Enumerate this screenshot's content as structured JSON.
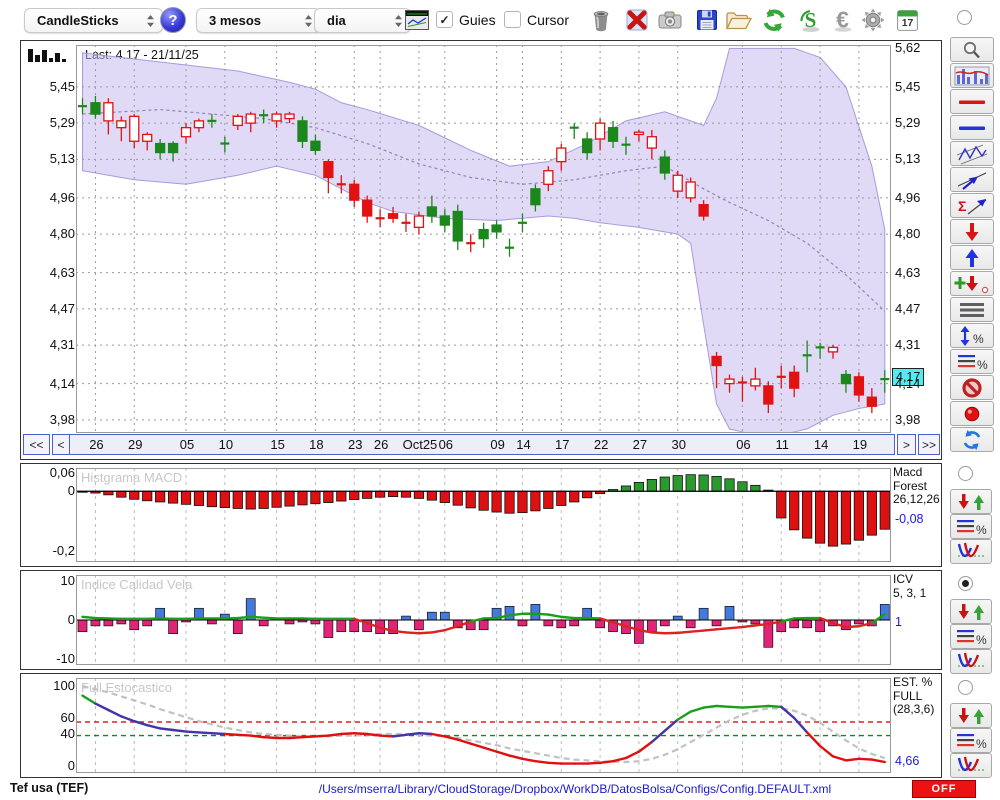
{
  "toolbar": {
    "chart_type": "CandleSticks",
    "period": "3 mesos",
    "interval": "dia",
    "help": "?",
    "guies": "Guies",
    "guies_checked": true,
    "cursor": "Cursor",
    "cursor_checked": false,
    "calendar_day": "17",
    "icons": [
      "trash",
      "delete-x",
      "camera",
      "save-floppy",
      "open-folder",
      "refresh-green",
      "sync-s",
      "euro",
      "settings-gear",
      "calendar-17"
    ]
  },
  "chart": {
    "last_label": "Last: 4.17 - 21/11/25",
    "left_axis": [
      "5,45",
      "5,29",
      "5,13",
      "4,96",
      "4,80",
      "4,63",
      "4,47",
      "4,31",
      "4,14",
      "3,98"
    ],
    "right_axis": [
      "5,62",
      "5,45",
      "5,29",
      "5,13",
      "4,96",
      "4,80",
      "4,63",
      "4,47",
      "4,31",
      "4,14",
      "3,98"
    ],
    "price_tag": "4,17",
    "x_labels": [
      "26",
      "29",
      "05",
      "10",
      "15",
      "18",
      "23",
      "26",
      "Oct25",
      "06",
      "09",
      "14",
      "17",
      "22",
      "27",
      "30",
      "06",
      "11",
      "14",
      "19"
    ],
    "nav": {
      "first": "<<",
      "prev": "<",
      "next": ">",
      "last": ">>"
    }
  },
  "panels": {
    "macd": {
      "title": "Histgrama MACD",
      "axis": [
        "0,06",
        "0",
        "-0,2"
      ],
      "right_lines": [
        "Macd",
        "Forest",
        "26,12,26"
      ],
      "value": "-0,08"
    },
    "icv": {
      "title": "Indice Calidad Vela",
      "axis": [
        "10",
        "0",
        "-10"
      ],
      "right_lines": [
        "ICV",
        "5, 3, 1"
      ],
      "value": "1"
    },
    "stoch": {
      "title": "Full Estocastico",
      "axis": [
        "100",
        "60",
        "40",
        "0"
      ],
      "right_lines": [
        "EST. %",
        "FULL",
        "(28,3,6)"
      ],
      "value": "4,66"
    }
  },
  "statusbar": {
    "symbol": "Tef usa (TEF)",
    "path": "/Users/mserra/Library/CloudStorage/Dropbox/WorkDB/DatosBolsa/Configs/Config.DEFAULT.xml",
    "off": "OFF"
  },
  "sidebar_tools": [
    "zoom-magnifier",
    "indicator-chart",
    "red-line",
    "blue-line",
    "zigzag-channel",
    "trend-arrow",
    "sigma-trend",
    "down-arrow-red",
    "up-arrow-blue",
    "add-signal",
    "list-lines",
    "vertical-percent",
    "lines-percent",
    "forbidden",
    "record-dot",
    "refresh-blue"
  ],
  "panel_tools": [
    "signal-arrows",
    "lines-percent",
    "curve-v"
  ],
  "colors": {
    "band": "#c6bcf0",
    "band_edge": "#a79bdc",
    "mid_line": "#8d87b5",
    "grid": "#9b9b9b",
    "green": "#1c871c",
    "red": "#e01212",
    "macd_green": "#2a9a2e",
    "macd_red": "#dd1111",
    "icv_blue": "#447add",
    "icv_pink": "#e22478",
    "icv_line_green": "#18a018",
    "icv_line_red": "#dd2222",
    "stoch_green": "#18a018",
    "stoch_purple": "#4633a8",
    "stoch_red": "#e01010",
    "signal_gray": "#c2c2c2",
    "overbought_red": "#dd2222",
    "oversold_green": "#118811",
    "tag_cyan": "#55e9f2",
    "nav_blue": "#4a5fd0",
    "link_blue": "#1a1acc",
    "off_red": "#ee1111"
  },
  "chart_data": [
    {
      "type": "candlestick",
      "name": "price",
      "ylim": [
        3.92,
        5.64
      ],
      "x_tick_indices": [
        1,
        4,
        8,
        11,
        15,
        18,
        21,
        23,
        26,
        28,
        32,
        34,
        37,
        40,
        43,
        46,
        51,
        54,
        57,
        60
      ],
      "grid_prices": [
        5.45,
        5.29,
        5.13,
        4.96,
        4.8,
        4.63,
        4.47,
        4.31,
        4.14,
        3.98
      ],
      "last_price": 4.17,
      "candles": [
        [
          5.36,
          5.4,
          5.33,
          5.37,
          "gc"
        ],
        [
          5.33,
          5.41,
          5.31,
          5.38,
          "g"
        ],
        [
          5.38,
          5.4,
          5.24,
          5.3,
          "G"
        ],
        [
          5.27,
          5.32,
          5.21,
          5.3,
          "G"
        ],
        [
          5.32,
          5.33,
          5.18,
          5.21,
          "G"
        ],
        [
          5.21,
          5.25,
          5.17,
          5.24,
          "G"
        ],
        [
          5.2,
          5.22,
          5.13,
          5.16,
          "g"
        ],
        [
          5.16,
          5.21,
          5.12,
          5.2,
          "g"
        ],
        [
          5.23,
          5.29,
          5.2,
          5.27,
          "G"
        ],
        [
          5.27,
          5.31,
          5.25,
          5.3,
          "G"
        ],
        [
          5.3,
          5.33,
          5.27,
          5.3,
          "gc"
        ],
        [
          5.2,
          5.23,
          5.16,
          5.2,
          "gc"
        ],
        [
          5.28,
          5.33,
          5.26,
          5.32,
          "G"
        ],
        [
          5.29,
          5.34,
          5.25,
          5.33,
          "G"
        ],
        [
          5.31,
          5.35,
          5.29,
          5.34,
          "gc"
        ],
        [
          5.3,
          5.34,
          5.27,
          5.33,
          "G"
        ],
        [
          5.31,
          5.34,
          5.29,
          5.33,
          "G"
        ],
        [
          5.3,
          5.32,
          5.18,
          5.21,
          "g"
        ],
        [
          5.21,
          5.24,
          5.15,
          5.17,
          "g"
        ],
        [
          5.12,
          5.13,
          4.98,
          5.05,
          "r"
        ],
        [
          5.02,
          5.06,
          4.98,
          5.02,
          "rc"
        ],
        [
          5.02,
          5.04,
          4.92,
          4.95,
          "r"
        ],
        [
          4.95,
          4.97,
          4.85,
          4.88,
          "r"
        ],
        [
          4.87,
          4.91,
          4.83,
          4.87,
          "rc"
        ],
        [
          4.89,
          4.92,
          4.85,
          4.87,
          "r"
        ],
        [
          4.85,
          4.89,
          4.81,
          4.85,
          "rc"
        ],
        [
          4.83,
          4.9,
          4.8,
          4.88,
          "G"
        ],
        [
          4.88,
          4.97,
          4.85,
          4.92,
          "g"
        ],
        [
          4.88,
          4.91,
          4.81,
          4.84,
          "g"
        ],
        [
          4.9,
          4.93,
          4.73,
          4.77,
          "g"
        ],
        [
          4.76,
          4.8,
          4.72,
          4.76,
          "rc"
        ],
        [
          4.78,
          4.85,
          4.74,
          4.82,
          "g"
        ],
        [
          4.81,
          4.86,
          4.78,
          4.84,
          "g"
        ],
        [
          4.74,
          4.78,
          4.7,
          4.74,
          "gc"
        ],
        [
          4.85,
          4.89,
          4.81,
          4.85,
          "gc"
        ],
        [
          4.93,
          5.02,
          4.9,
          5.0,
          "g"
        ],
        [
          5.02,
          5.1,
          4.99,
          5.08,
          "G"
        ],
        [
          5.12,
          5.2,
          5.08,
          5.18,
          "G"
        ],
        [
          5.27,
          5.29,
          5.22,
          5.27,
          "gc"
        ],
        [
          5.22,
          5.25,
          5.13,
          5.16,
          "g"
        ],
        [
          5.22,
          5.31,
          5.17,
          5.29,
          "G"
        ],
        [
          5.27,
          5.3,
          5.18,
          5.21,
          "g"
        ],
        [
          5.2,
          5.23,
          5.15,
          5.19,
          "gc"
        ],
        [
          5.24,
          5.26,
          5.21,
          5.25,
          "G"
        ],
        [
          5.18,
          5.26,
          5.13,
          5.23,
          "G"
        ],
        [
          5.14,
          5.17,
          5.04,
          5.07,
          "g"
        ],
        [
          4.99,
          5.08,
          4.96,
          5.06,
          "G"
        ],
        [
          5.03,
          5.05,
          4.94,
          4.96,
          "R"
        ],
        [
          4.93,
          4.95,
          4.86,
          4.88,
          "r"
        ],
        [
          4.26,
          4.28,
          4.12,
          4.22,
          "r"
        ],
        [
          4.14,
          4.18,
          4.1,
          4.16,
          "R"
        ],
        [
          4.15,
          4.17,
          4.06,
          4.14,
          "rc"
        ],
        [
          4.16,
          4.21,
          4.11,
          4.13,
          "R"
        ],
        [
          4.13,
          4.15,
          4.01,
          4.05,
          "r"
        ],
        [
          4.17,
          4.22,
          4.12,
          4.17,
          "rc"
        ],
        [
          4.19,
          4.22,
          4.08,
          4.12,
          "r"
        ],
        [
          4.26,
          4.33,
          4.19,
          4.27,
          "gc"
        ],
        [
          4.3,
          4.32,
          4.25,
          4.3,
          "gc"
        ],
        [
          4.28,
          4.31,
          4.25,
          4.3,
          "G"
        ],
        [
          4.14,
          4.2,
          4.1,
          4.18,
          "g"
        ],
        [
          4.17,
          4.19,
          4.06,
          4.09,
          "r"
        ],
        [
          4.08,
          4.12,
          4.01,
          4.04,
          "r"
        ],
        [
          4.15,
          4.2,
          4.1,
          4.17,
          "gc"
        ]
      ],
      "band": {
        "upper": [
          [
            0,
            5.6
          ],
          [
            6,
            5.56
          ],
          [
            12,
            5.52
          ],
          [
            16,
            5.47
          ],
          [
            18,
            5.44
          ],
          [
            20,
            5.38
          ],
          [
            22,
            5.35
          ],
          [
            26,
            5.28
          ],
          [
            30,
            5.17
          ],
          [
            33,
            5.1
          ],
          [
            36,
            5.12
          ],
          [
            39,
            5.2
          ],
          [
            42,
            5.3
          ],
          [
            45,
            5.34
          ],
          [
            47,
            5.3
          ],
          [
            48,
            5.28
          ],
          [
            49,
            5.4
          ],
          [
            50,
            5.62
          ],
          [
            55,
            5.62
          ],
          [
            57,
            5.58
          ],
          [
            59,
            5.45
          ],
          [
            61,
            5.1
          ],
          [
            62,
            4.82
          ]
        ],
        "lower": [
          [
            0,
            5.08
          ],
          [
            4,
            5.04
          ],
          [
            8,
            5.02
          ],
          [
            12,
            5.06
          ],
          [
            15,
            5.1
          ],
          [
            18,
            5.06
          ],
          [
            20,
            5.0
          ],
          [
            22,
            4.94
          ],
          [
            24,
            4.9
          ],
          [
            28,
            4.87
          ],
          [
            32,
            4.86
          ],
          [
            36,
            4.88
          ],
          [
            38,
            4.87
          ],
          [
            40,
            4.85
          ],
          [
            43,
            4.83
          ],
          [
            46,
            4.8
          ],
          [
            47,
            4.76
          ],
          [
            48,
            4.4
          ],
          [
            49,
            4.05
          ],
          [
            50,
            3.94
          ],
          [
            53,
            3.9
          ],
          [
            56,
            3.94
          ],
          [
            58,
            4.0
          ],
          [
            60,
            4.03
          ],
          [
            62,
            4.05
          ]
        ],
        "mid": [
          [
            0,
            5.33
          ],
          [
            6,
            5.35
          ],
          [
            10,
            5.33
          ],
          [
            14,
            5.31
          ],
          [
            18,
            5.27
          ],
          [
            22,
            5.2
          ],
          [
            26,
            5.11
          ],
          [
            30,
            5.05
          ],
          [
            34,
            5.02
          ],
          [
            38,
            5.04
          ],
          [
            42,
            5.08
          ],
          [
            45,
            5.1
          ],
          [
            48,
            5.0
          ],
          [
            50,
            4.94
          ],
          [
            53,
            4.86
          ],
          [
            56,
            4.76
          ],
          [
            59,
            4.62
          ],
          [
            62,
            4.46
          ]
        ]
      }
    },
    {
      "type": "bar",
      "name": "macd_histogram",
      "ylim": [
        -0.225,
        0.065
      ],
      "values": [
        -0.002,
        -0.006,
        -0.012,
        -0.02,
        -0.027,
        -0.032,
        -0.036,
        -0.04,
        -0.044,
        -0.048,
        -0.052,
        -0.055,
        -0.058,
        -0.06,
        -0.058,
        -0.054,
        -0.05,
        -0.046,
        -0.042,
        -0.038,
        -0.033,
        -0.028,
        -0.024,
        -0.02,
        -0.018,
        -0.02,
        -0.024,
        -0.03,
        -0.038,
        -0.047,
        -0.056,
        -0.064,
        -0.07,
        -0.074,
        -0.072,
        -0.066,
        -0.058,
        -0.048,
        -0.036,
        -0.022,
        -0.008,
        0.006,
        0.018,
        0.03,
        0.04,
        0.048,
        0.053,
        0.056,
        0.055,
        0.05,
        0.042,
        0.032,
        0.02,
        0.004,
        -0.09,
        -0.13,
        -0.158,
        -0.175,
        -0.185,
        -0.178,
        -0.165,
        -0.148,
        -0.128
      ]
    },
    {
      "type": "bar+line",
      "name": "icv",
      "ylim": [
        -10,
        10
      ],
      "bars": [
        -3,
        -1.5,
        -1.5,
        -1,
        -2.5,
        -1.5,
        3,
        -3.5,
        -0.5,
        3,
        -1,
        1.5,
        -3.5,
        5.5,
        -1.5,
        0.5,
        -1,
        -0.5,
        -1,
        -4.5,
        -3,
        -3,
        -3,
        -3.5,
        -3.5,
        1,
        -2.5,
        2,
        2,
        -2,
        -2.5,
        -2.5,
        3,
        3.5,
        -1.5,
        4,
        -1.5,
        -2,
        -1.5,
        3,
        -2,
        -3,
        -3.5,
        -6,
        -3,
        -1.5,
        1,
        -2,
        3,
        -1.5,
        3.5,
        -0.5,
        -1,
        -7,
        -3,
        -2,
        -2,
        -3,
        -1.5,
        -2.5,
        -1,
        -1.5,
        4
      ],
      "line": [
        0.8,
        0.5,
        0.4,
        0.3,
        0.3,
        0.3,
        0.4,
        0.3,
        0.3,
        0.4,
        0.4,
        0.4,
        0.5,
        0.8,
        0.6,
        0.4,
        0.4,
        0.4,
        0.3,
        0.3,
        0.3,
        0.3,
        -0.8,
        -2.0,
        -2.8,
        -3.2,
        -3.4,
        -3.2,
        -2.6,
        -1.6,
        -0.4,
        0.4,
        0.5,
        1.2,
        1.6,
        1.6,
        1.4,
        0.8,
        0.5,
        0.5,
        0.4,
        -0.6,
        -1.6,
        -2.6,
        -3.2,
        -3.4,
        -3.3,
        -3.0,
        -2.7,
        -2.4,
        -2.1,
        -1.8,
        -1.4,
        -1.0,
        -0.4,
        0.4,
        0.5,
        0.5,
        -0.8,
        -1.8,
        -1.6,
        -0.8,
        1.5
      ]
    },
    {
      "type": "line",
      "name": "stochastic",
      "ylim": [
        0,
        100
      ],
      "overbought": 55,
      "oversold": 38,
      "main": [
        88,
        78,
        70,
        62,
        56,
        51,
        47,
        45,
        43,
        42,
        41,
        40,
        39,
        38,
        36,
        35,
        35,
        36,
        37,
        38,
        40,
        41,
        40,
        38,
        37,
        39,
        41,
        40,
        37,
        33,
        28,
        23,
        18,
        13,
        9,
        6,
        4,
        3,
        3,
        3,
        4,
        6,
        10,
        18,
        30,
        44,
        58,
        68,
        73,
        75,
        74,
        73,
        74,
        75,
        74,
        60,
        42,
        25,
        12,
        7,
        9,
        8,
        5
      ],
      "main_colors": [
        "g",
        "g",
        "p",
        "p",
        "p",
        "p",
        "p",
        "p",
        "p",
        "p",
        "p",
        "p",
        "r",
        "r",
        "r",
        "r",
        "r",
        "r",
        "r",
        "r",
        "r",
        "r",
        "r",
        "r",
        "r",
        "p",
        "p",
        "p",
        "r",
        "r",
        "r",
        "r",
        "r",
        "r",
        "r",
        "r",
        "r",
        "r",
        "r",
        "r",
        "r",
        "r",
        "r",
        "r",
        "r",
        "p",
        "p",
        "g",
        "g",
        "g",
        "g",
        "g",
        "g",
        "g",
        "g",
        "p",
        "p",
        "r",
        "r",
        "r",
        "r",
        "r",
        "r"
      ],
      "signal": [
        100,
        96,
        92,
        87,
        82,
        77,
        71,
        66,
        61,
        56,
        52,
        48,
        45,
        42,
        40,
        39,
        38,
        37,
        37,
        37,
        38,
        38,
        39,
        40,
        40,
        40,
        39,
        38,
        37,
        35,
        32,
        29,
        26,
        22,
        19,
        16,
        13,
        10,
        8,
        7,
        6,
        5,
        5,
        6,
        9,
        14,
        21,
        30,
        39,
        48,
        57,
        64,
        69,
        72,
        72,
        69,
        63,
        54,
        43,
        32,
        22,
        15,
        10
      ]
    }
  ]
}
